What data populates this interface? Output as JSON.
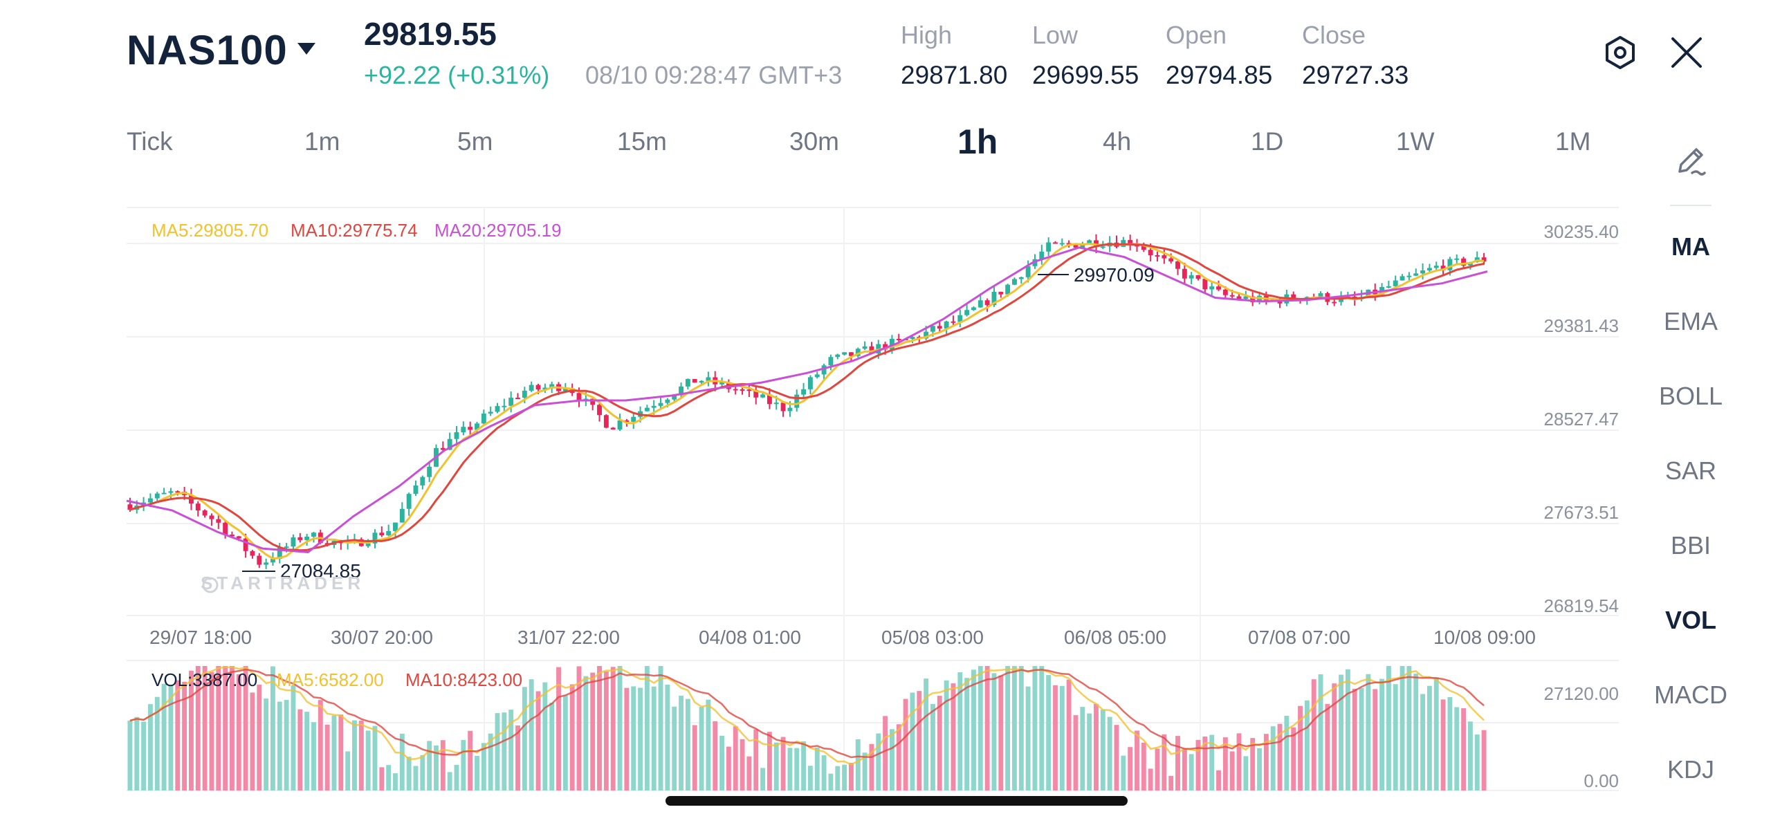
{
  "header": {
    "symbol": "NAS100",
    "price": "29819.55",
    "change": "+92.22 (+0.31%)",
    "timestamp": "08/10 09:28:47 GMT+3",
    "stats": [
      {
        "label": "High",
        "value": "29871.80"
      },
      {
        "label": "Low",
        "value": "29699.55"
      },
      {
        "label": "Open",
        "value": "29794.85"
      },
      {
        "label": "Close",
        "value": "29727.33"
      }
    ]
  },
  "timeframes": [
    "Tick",
    "1m",
    "5m",
    "15m",
    "30m",
    "1h",
    "4h",
    "1D",
    "1W",
    "1M"
  ],
  "active_timeframe": "1h",
  "indicators": [
    "MA",
    "EMA",
    "BOLL",
    "SAR",
    "BBI",
    "VOL",
    "MACD",
    "KDJ"
  ],
  "active_indicators": [
    "MA",
    "VOL"
  ],
  "legend": {
    "ma5": "MA5:29805.70",
    "ma10": "MA10:29775.74",
    "ma20": "MA20:29705.19",
    "vol": "VOL:3387.00",
    "vol_ma5": "MA5:6582.00",
    "vol_ma10": "MA10:8423.00"
  },
  "price_axis": [
    "30235.40",
    "29381.43",
    "28527.47",
    "27673.51",
    "26819.54"
  ],
  "volume_axis": [
    "27120.00",
    "0.00"
  ],
  "time_axis": [
    "29/07 18:00",
    "30/07 20:00",
    "31/07 22:00",
    "04/08 01:00",
    "05/08 03:00",
    "06/08 05:00",
    "07/08 07:00",
    "10/08 09:00"
  ],
  "annotations": {
    "high_marker": "29970.09",
    "low_marker": "27084.85"
  },
  "watermark": "STARTRADER",
  "colors": {
    "up": "#2bb3a0",
    "down": "#e8245a",
    "ma5": "#f2c12e",
    "ma10": "#e0463e",
    "ma20": "#c94fd6",
    "text_dark": "#14233c",
    "text_muted": "#9aa1ad"
  },
  "icons": {
    "settings": "hexagon-settings-icon",
    "close": "close-icon",
    "draw": "pencil-draw-icon"
  },
  "chart_data": {
    "type": "candlestick",
    "price_range": [
      26819.54,
      30235.4
    ],
    "volume_range": [
      0,
      27120
    ],
    "price_anchors": [
      27750,
      27850,
      27600,
      27250,
      27500,
      27400,
      27550,
      28200,
      28450,
      28700,
      28750,
      28400,
      28600,
      28800,
      28700,
      28550,
      28950,
      29050,
      29150,
      29300,
      29550,
      29900,
      29950,
      29950,
      29700,
      29500,
      29450,
      29500,
      29450,
      29600,
      29750,
      29800
    ],
    "ma20_anchors": [
      27780,
      27700,
      27520,
      27380,
      27350,
      27650,
      27900,
      28200,
      28400,
      28580,
      28620,
      28620,
      28660,
      28720,
      28770,
      28850,
      28950,
      29100,
      29300,
      29550,
      29780,
      29900,
      29820,
      29650,
      29480,
      29450,
      29460,
      29500,
      29550,
      29600,
      29700
    ]
  }
}
